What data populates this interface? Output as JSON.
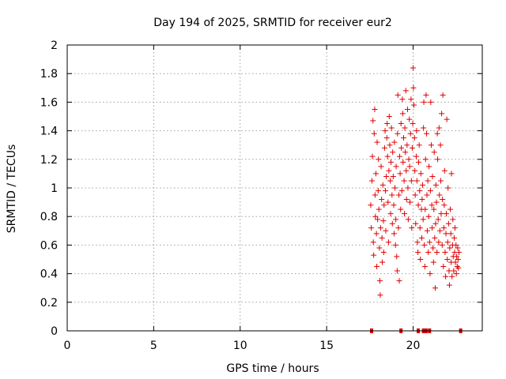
{
  "chart_data": {
    "type": "scatter",
    "title": "Day 194 of 2025, SRMTID for receiver eur2",
    "xlabel": "GPS time / hours",
    "ylabel": "SRMTID / TECUs",
    "xlim": [
      0,
      24
    ],
    "ylim": [
      0,
      2
    ],
    "xticks": [
      0,
      5,
      10,
      15,
      20
    ],
    "yticks": [
      0,
      0.2,
      0.4,
      0.6,
      0.8,
      1,
      1.2,
      1.4,
      1.6,
      1.8,
      2
    ],
    "xtick_labels": [
      "0",
      "5",
      "10",
      "15",
      "20"
    ],
    "ytick_labels": [
      "0",
      "0.2",
      "0.4",
      "0.6",
      "0.8",
      "1",
      "1.2",
      "1.4",
      "1.6",
      "1.8",
      "2"
    ],
    "grid": true,
    "marker_color": "#e00000",
    "series": [
      {
        "name": "SRMTID",
        "marker": "plus",
        "points": [
          [
            17.55,
            0.88
          ],
          [
            17.58,
            0.72
          ],
          [
            17.62,
            1.05
          ],
          [
            17.65,
            1.22
          ],
          [
            17.68,
            1.47
          ],
          [
            17.7,
            0.62
          ],
          [
            17.72,
            0.53
          ],
          [
            17.75,
            1.38
          ],
          [
            17.78,
            1.55
          ],
          [
            17.8,
            0.95
          ],
          [
            17.82,
            0.8
          ],
          [
            17.85,
            1.1
          ],
          [
            17.88,
            0.68
          ],
          [
            17.9,
            0.45
          ],
          [
            17.92,
            1.32
          ],
          [
            17.95,
            0.78
          ],
          [
            17.98,
            0.98
          ],
          [
            18.0,
            1.2
          ],
          [
            18.02,
            0.85
          ],
          [
            18.05,
            0.58
          ],
          [
            18.08,
            0.35
          ],
          [
            18.1,
            0.25
          ],
          [
            18.12,
            0.72
          ],
          [
            18.15,
            1.15
          ],
          [
            18.18,
            0.92
          ],
          [
            18.2,
            0.65
          ],
          [
            18.22,
            0.48
          ],
          [
            18.25,
            1.02
          ],
          [
            18.28,
            0.77
          ],
          [
            18.3,
            0.55
          ],
          [
            18.32,
            0.88
          ],
          [
            18.35,
            1.28
          ],
          [
            18.38,
            1.4
          ],
          [
            18.4,
            0.98
          ],
          [
            18.42,
            0.7
          ],
          [
            18.45,
            1.08
          ],
          [
            18.48,
            1.35
          ],
          [
            18.5,
            1.45
          ],
          [
            18.52,
            1.22
          ],
          [
            18.55,
            0.9
          ],
          [
            18.58,
            0.62
          ],
          [
            18.6,
            1.12
          ],
          [
            18.62,
            1.5
          ],
          [
            18.65,
            1.3
          ],
          [
            18.68,
            1.05
          ],
          [
            18.7,
            0.82
          ],
          [
            18.72,
            1.18
          ],
          [
            18.75,
            1.42
          ],
          [
            18.78,
            0.95
          ],
          [
            18.8,
            0.75
          ],
          [
            18.82,
            1.25
          ],
          [
            18.85,
            1.08
          ],
          [
            18.88,
            0.88
          ],
          [
            18.9,
            0.68
          ],
          [
            18.92,
            1.32
          ],
          [
            18.95,
            1.0
          ],
          [
            18.98,
            0.6
          ],
          [
            19.0,
            0.78
          ],
          [
            19.02,
            1.15
          ],
          [
            19.05,
            0.52
          ],
          [
            19.08,
            0.42
          ],
          [
            19.1,
            1.38
          ],
          [
            19.12,
            1.65
          ],
          [
            19.15,
            0.72
          ],
          [
            19.18,
            0.95
          ],
          [
            19.2,
            0.35
          ],
          [
            19.22,
            1.22
          ],
          [
            19.25,
            1.1
          ],
          [
            19.28,
            0.85
          ],
          [
            19.3,
            1.45
          ],
          [
            19.32,
            1.28
          ],
          [
            19.35,
            0.98
          ],
          [
            19.38,
            1.62
          ],
          [
            19.4,
            1.52
          ],
          [
            19.42,
            1.18
          ],
          [
            19.45,
            1.35
          ],
          [
            19.48,
            1.05
          ],
          [
            19.5,
            0.82
          ],
          [
            19.52,
            1.42
          ],
          [
            19.55,
            1.25
          ],
          [
            19.58,
            1.68
          ],
          [
            19.6,
            1.12
          ],
          [
            19.62,
            0.92
          ],
          [
            19.65,
            1.3
          ],
          [
            19.68,
            1.55
          ],
          [
            19.7,
            1.0
          ],
          [
            19.72,
            0.78
          ],
          [
            19.75,
            1.2
          ],
          [
            19.78,
            1.48
          ],
          [
            19.8,
            1.15
          ],
          [
            19.82,
            0.9
          ],
          [
            19.85,
            1.38
          ],
          [
            19.88,
            1.62
          ],
          [
            19.9,
            1.05
          ],
          [
            19.92,
            0.72
          ],
          [
            19.95,
            1.28
          ],
          [
            19.98,
            1.45
          ],
          [
            20.0,
            1.84
          ],
          [
            20.02,
            1.7
          ],
          [
            20.05,
            1.58
          ],
          [
            20.08,
            1.35
          ],
          [
            20.1,
            1.12
          ],
          [
            20.12,
            0.95
          ],
          [
            20.15,
            0.75
          ],
          [
            20.18,
            1.22
          ],
          [
            20.2,
            1.4
          ],
          [
            20.22,
            1.05
          ],
          [
            20.25,
            0.62
          ],
          [
            20.28,
            0.55
          ],
          [
            20.3,
            0.88
          ],
          [
            20.32,
            1.18
          ],
          [
            20.35,
            1.3
          ],
          [
            20.38,
            0.98
          ],
          [
            20.4,
            0.72
          ],
          [
            20.42,
            0.5
          ],
          [
            20.45,
            1.1
          ],
          [
            20.48,
            0.85
          ],
          [
            20.5,
            0.65
          ],
          [
            20.52,
            0.92
          ],
          [
            20.55,
            1.02
          ],
          [
            20.58,
            0.78
          ],
          [
            20.6,
            1.42
          ],
          [
            20.62,
            1.6
          ],
          [
            20.65,
            0.6
          ],
          [
            20.68,
            0.45
          ],
          [
            20.7,
            0.85
          ],
          [
            20.72,
            1.2
          ],
          [
            20.75,
            1.65
          ],
          [
            20.78,
            1.38
          ],
          [
            20.8,
            0.95
          ],
          [
            20.82,
            0.7
          ],
          [
            20.85,
            1.05
          ],
          [
            20.88,
            0.55
          ],
          [
            20.9,
            0.8
          ],
          [
            20.92,
            1.15
          ],
          [
            20.95,
            0.62
          ],
          [
            20.98,
            0.4
          ],
          [
            21.0,
            0.98
          ],
          [
            21.02,
            1.6
          ],
          [
            21.05,
            1.3
          ],
          [
            21.08,
            0.88
          ],
          [
            21.1,
            0.72
          ],
          [
            21.12,
            1.08
          ],
          [
            21.15,
            0.58
          ],
          [
            21.18,
            0.48
          ],
          [
            21.2,
            0.85
          ],
          [
            21.22,
            1.25
          ],
          [
            21.25,
            0.65
          ],
          [
            21.28,
            0.3
          ],
          [
            21.3,
            0.75
          ],
          [
            21.32,
            1.02
          ],
          [
            21.35,
            0.9
          ],
          [
            21.38,
            0.55
          ],
          [
            21.4,
            1.38
          ],
          [
            21.42,
            1.2
          ],
          [
            21.45,
            0.78
          ],
          [
            21.48,
            0.62
          ],
          [
            21.5,
            1.42
          ],
          [
            21.52,
            0.95
          ],
          [
            21.55,
            0.7
          ],
          [
            21.58,
            1.3
          ],
          [
            21.6,
            1.05
          ],
          [
            21.62,
            0.82
          ],
          [
            21.65,
            1.52
          ],
          [
            21.68,
            0.6
          ],
          [
            21.7,
            0.92
          ],
          [
            21.72,
            1.65
          ],
          [
            21.75,
            0.45
          ],
          [
            21.78,
            0.72
          ],
          [
            21.8,
            0.88
          ],
          [
            21.82,
            1.12
          ],
          [
            21.85,
            0.55
          ],
          [
            21.88,
            0.38
          ],
          [
            21.9,
            0.68
          ],
          [
            21.92,
            0.82
          ],
          [
            21.95,
            1.48
          ],
          [
            21.98,
            0.5
          ],
          [
            22.0,
            0.62
          ],
          [
            22.02,
            1.0
          ],
          [
            22.05,
            0.75
          ],
          [
            22.08,
            0.42
          ],
          [
            22.1,
            0.32
          ],
          [
            22.12,
            0.58
          ],
          [
            22.15,
            0.85
          ],
          [
            22.18,
            0.68
          ],
          [
            22.2,
            0.48
          ],
          [
            22.22,
            1.1
          ],
          [
            22.25,
            0.38
          ],
          [
            22.28,
            0.6
          ],
          [
            22.3,
            0.78
          ],
          [
            22.32,
            0.52
          ],
          [
            22.35,
            0.42
          ],
          [
            22.38,
            0.65
          ],
          [
            22.4,
            0.55
          ],
          [
            22.42,
            0.72
          ],
          [
            22.45,
            0.48
          ],
          [
            22.48,
            0.6
          ],
          [
            22.5,
            0.4
          ],
          [
            22.52,
            0.52
          ],
          [
            22.55,
            0.45
          ],
          [
            22.58,
            0.58
          ],
          [
            22.6,
            0.5
          ],
          [
            22.62,
            0.44
          ],
          [
            22.65,
            0.55
          ]
        ]
      },
      {
        "name": "zero markers",
        "marker": "square",
        "points": [
          [
            17.6,
            0
          ],
          [
            19.3,
            0
          ],
          [
            20.3,
            0
          ],
          [
            20.6,
            0
          ],
          [
            20.75,
            0
          ],
          [
            20.95,
            0
          ],
          [
            22.75,
            0
          ]
        ]
      }
    ]
  }
}
